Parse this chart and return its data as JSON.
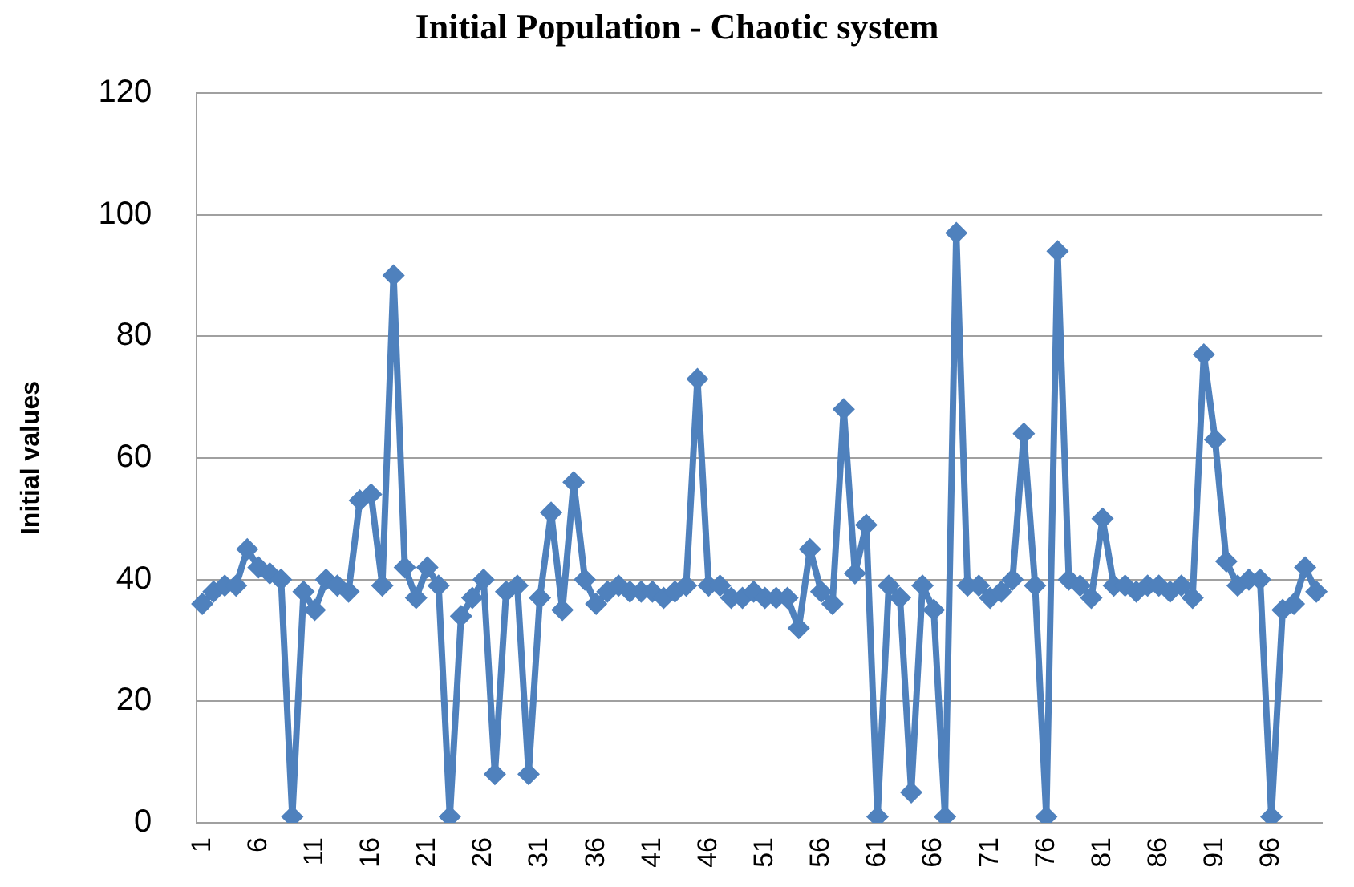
{
  "chart_data": {
    "type": "line",
    "title": "Initial Population - Chaotic system",
    "ylabel": "Initial values",
    "categories": [
      "1",
      null,
      null,
      null,
      null,
      "6",
      null,
      null,
      null,
      null,
      "11",
      null,
      null,
      null,
      null,
      "16",
      null,
      null,
      null,
      null,
      "21",
      null,
      null,
      null,
      null,
      "26",
      null,
      null,
      null,
      null,
      "31",
      null,
      null,
      null,
      null,
      "36",
      null,
      null,
      null,
      null,
      "41",
      null,
      null,
      null,
      null,
      "46",
      null,
      null,
      null,
      null,
      "51",
      null,
      null,
      null,
      null,
      "56",
      null,
      null,
      null,
      null,
      "61",
      null,
      null,
      null,
      null,
      "66",
      null,
      null,
      null,
      null,
      "71",
      null,
      null,
      null,
      null,
      "76",
      null,
      null,
      null,
      null,
      "81",
      null,
      null,
      null,
      null,
      "86",
      null,
      null,
      null,
      null,
      "91",
      null,
      null,
      null,
      null,
      "96",
      null,
      null,
      null,
      null
    ],
    "series": [
      {
        "color": "#4f81bd",
        "values": [
          36,
          38,
          39,
          39,
          45,
          42,
          41,
          40,
          1,
          38,
          35,
          40,
          39,
          38,
          53,
          54,
          39,
          90,
          42,
          37,
          42,
          39,
          1,
          34,
          37,
          40,
          8,
          38,
          39,
          8,
          37,
          51,
          35,
          56,
          40,
          36,
          38,
          39,
          38,
          38,
          38,
          37,
          38,
          39,
          73,
          39,
          39,
          37,
          37,
          38,
          37,
          37,
          37,
          32,
          45,
          38,
          36,
          68,
          41,
          49,
          1,
          39,
          37,
          5,
          39,
          35,
          1,
          97,
          39,
          39,
          37,
          38,
          40,
          64,
          39,
          1,
          94,
          40,
          39,
          37,
          50,
          39,
          39,
          38,
          39,
          39,
          38,
          39,
          37,
          77,
          63,
          43,
          39,
          40,
          40,
          1,
          35,
          36,
          42,
          38
        ]
      }
    ],
    "ylim": [
      0,
      120
    ],
    "yticks": [
      0,
      20,
      40,
      60,
      80,
      100,
      120
    ],
    "grid": "y",
    "legend": false,
    "marker": "diamond",
    "line_style": "solid"
  }
}
